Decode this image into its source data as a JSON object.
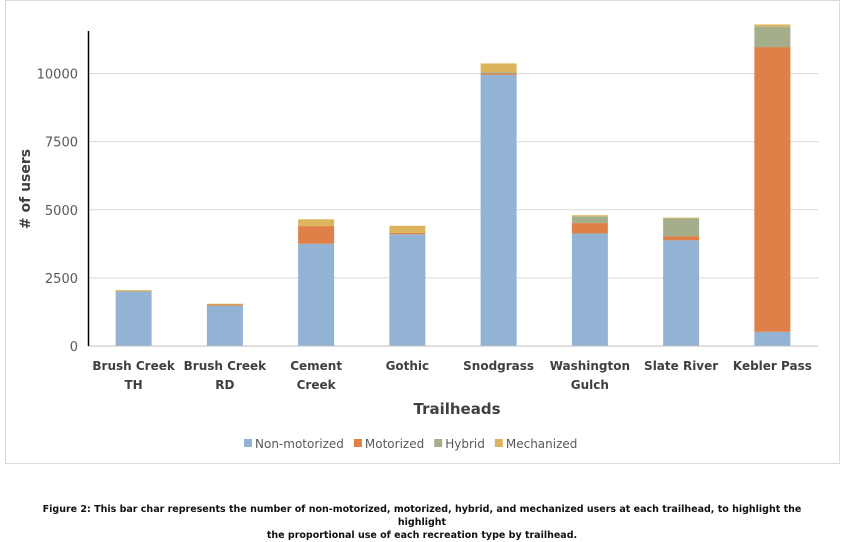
{
  "chart_data": {
    "type": "bar",
    "stacked": true,
    "title": "",
    "xlabel": "Trailheads",
    "ylabel": "# of users",
    "ylim": [
      0,
      12000
    ],
    "yticks": [
      "0",
      "2500",
      "5000",
      "7500",
      "10000"
    ],
    "grid": true,
    "legend_position": "bottom",
    "categories": [
      [
        "Brush Creek",
        "TH"
      ],
      [
        "Brush Creek",
        "RD"
      ],
      [
        "Cement",
        "Creek"
      ],
      [
        "Gothic"
      ],
      [
        "Snodgrass"
      ],
      [
        "Washington",
        "Gulch"
      ],
      [
        "Slate River"
      ],
      [
        "Kebler Pass"
      ]
    ],
    "series": [
      {
        "name": "Non-motorized",
        "color": "#93b3d4",
        "values": [
          2000,
          1480,
          3750,
          4100,
          9950,
          4130,
          3880,
          520
        ]
      },
      {
        "name": "Motorized",
        "color": "#de8047",
        "values": [
          0,
          50,
          650,
          50,
          50,
          380,
          150,
          10450
        ]
      },
      {
        "name": "Hybrid",
        "color": "#a4ae8a",
        "values": [
          0,
          0,
          0,
          0,
          50,
          250,
          650,
          750
        ]
      },
      {
        "name": "Mechanized",
        "color": "#dbb55e",
        "values": [
          50,
          20,
          250,
          260,
          320,
          40,
          30,
          80
        ]
      }
    ]
  },
  "caption": {
    "line1": "Figure 2: This bar char represents the number of non-motorized, motorized, hybrid, and mechanized users at each trailhead, to highlight the highlight",
    "line2": "the proportional use of each recreation type by trailhead."
  }
}
